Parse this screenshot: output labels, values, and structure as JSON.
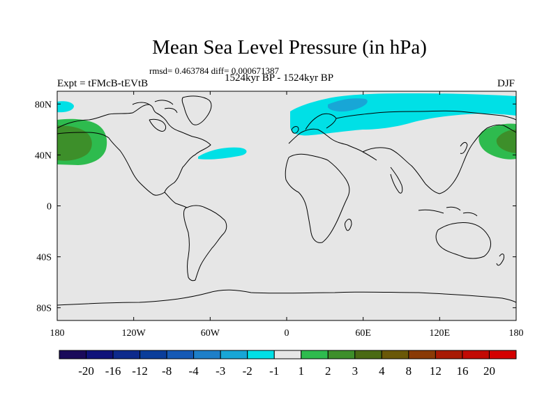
{
  "title": "Mean Sea Level Pressure (in hPa)",
  "stats": "rmsd= 0.463784 diff= 0.000671387",
  "left_label": "Expt = tFMcB-tEVtB",
  "center_label": "1524kyr BP - 1524kyr BP",
  "right_label": "DJF",
  "lat_ticks": [
    "80N",
    "40N",
    "0",
    "40S",
    "80S"
  ],
  "lon_ticks": [
    "180",
    "120W",
    "60W",
    "0",
    "60E",
    "120E",
    "180"
  ],
  "colorbar": {
    "labels": [
      "-20",
      "-16",
      "-12",
      "-8",
      "-4",
      "-3",
      "-2",
      "-1",
      "1",
      "2",
      "3",
      "4",
      "8",
      "12",
      "16",
      "20"
    ],
    "colors": [
      "#1a0a5a",
      "#0f127a",
      "#0d2a8c",
      "#0a3d9a",
      "#1559b5",
      "#1e7fc8",
      "#18a6d6",
      "#00e0e6",
      "#e6e6e6",
      "#2ebb4e",
      "#3d8f2a",
      "#4a6a14",
      "#6a5808",
      "#8a3a06",
      "#a81a04",
      "#c20a04",
      "#d40000"
    ]
  },
  "chart_data": {
    "type": "heatmap",
    "title": "Mean Sea Level Pressure (in hPa)",
    "subtitle": "rmsd= 0.463784 diff= 0.000671387",
    "x_ticks": [
      "180",
      "120W",
      "60W",
      "0",
      "60E",
      "120E",
      "180"
    ],
    "y_ticks": [
      "80N",
      "40N",
      "0",
      "40S",
      "80S"
    ],
    "xlim": [
      -180,
      180
    ],
    "ylim": [
      -90,
      90
    ],
    "levels": [
      -20,
      -16,
      -12,
      -8,
      -4,
      -3,
      -2,
      -1,
      1,
      2,
      3,
      4,
      8,
      12,
      16,
      20
    ],
    "background_range": [
      -1,
      1
    ],
    "regions": [
      {
        "name": "North Pacific (west of dateline)",
        "range": [
          1,
          3
        ],
        "core": [
          2,
          3
        ]
      },
      {
        "name": "North Pacific (east of dateline)",
        "range": [
          1,
          3
        ],
        "core": [
          2,
          3
        ]
      },
      {
        "name": "Arctic / northern Eurasia",
        "range": [
          -2,
          -1
        ],
        "core": [
          -3,
          -2
        ]
      },
      {
        "name": "North Atlantic",
        "range": [
          -2,
          -1
        ]
      },
      {
        "name": "Arctic Canada",
        "range": [
          -2,
          -1
        ]
      }
    ]
  }
}
